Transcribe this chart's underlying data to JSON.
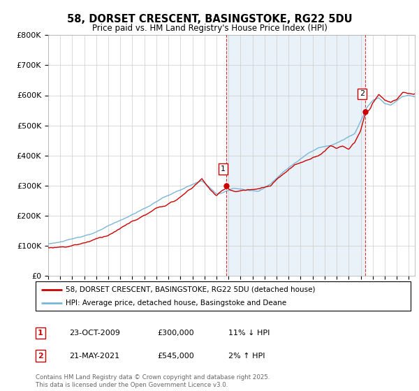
{
  "title": "58, DORSET CRESCENT, BASINGSTOKE, RG22 5DU",
  "subtitle": "Price paid vs. HM Land Registry's House Price Index (HPI)",
  "ylabel_ticks": [
    "£0",
    "£100K",
    "£200K",
    "£300K",
    "£400K",
    "£500K",
    "£600K",
    "£700K",
    "£800K"
  ],
  "ylim": [
    0,
    800000
  ],
  "xlim_start": 1995.0,
  "xlim_end": 2025.5,
  "hpi_color": "#7ab6d9",
  "hpi_fill_color": "#daeaf4",
  "price_color": "#cc0000",
  "dashed_line_color": "#cc0000",
  "marker1_x": 2009.81,
  "marker1_y": 300000,
  "marker2_x": 2021.38,
  "marker2_y": 545000,
  "legend_line1": "58, DORSET CRESCENT, BASINGSTOKE, RG22 5DU (detached house)",
  "legend_line2": "HPI: Average price, detached house, Basingstoke and Deane",
  "table_row1_num": "1",
  "table_row1_date": "23-OCT-2009",
  "table_row1_price": "£300,000",
  "table_row1_hpi": "11% ↓ HPI",
  "table_row2_num": "2",
  "table_row2_date": "21-MAY-2021",
  "table_row2_price": "£545,000",
  "table_row2_hpi": "2% ↑ HPI",
  "footnote": "Contains HM Land Registry data © Crown copyright and database right 2025.\nThis data is licensed under the Open Government Licence v3.0.",
  "background_color": "#ffffff",
  "grid_color": "#cccccc"
}
